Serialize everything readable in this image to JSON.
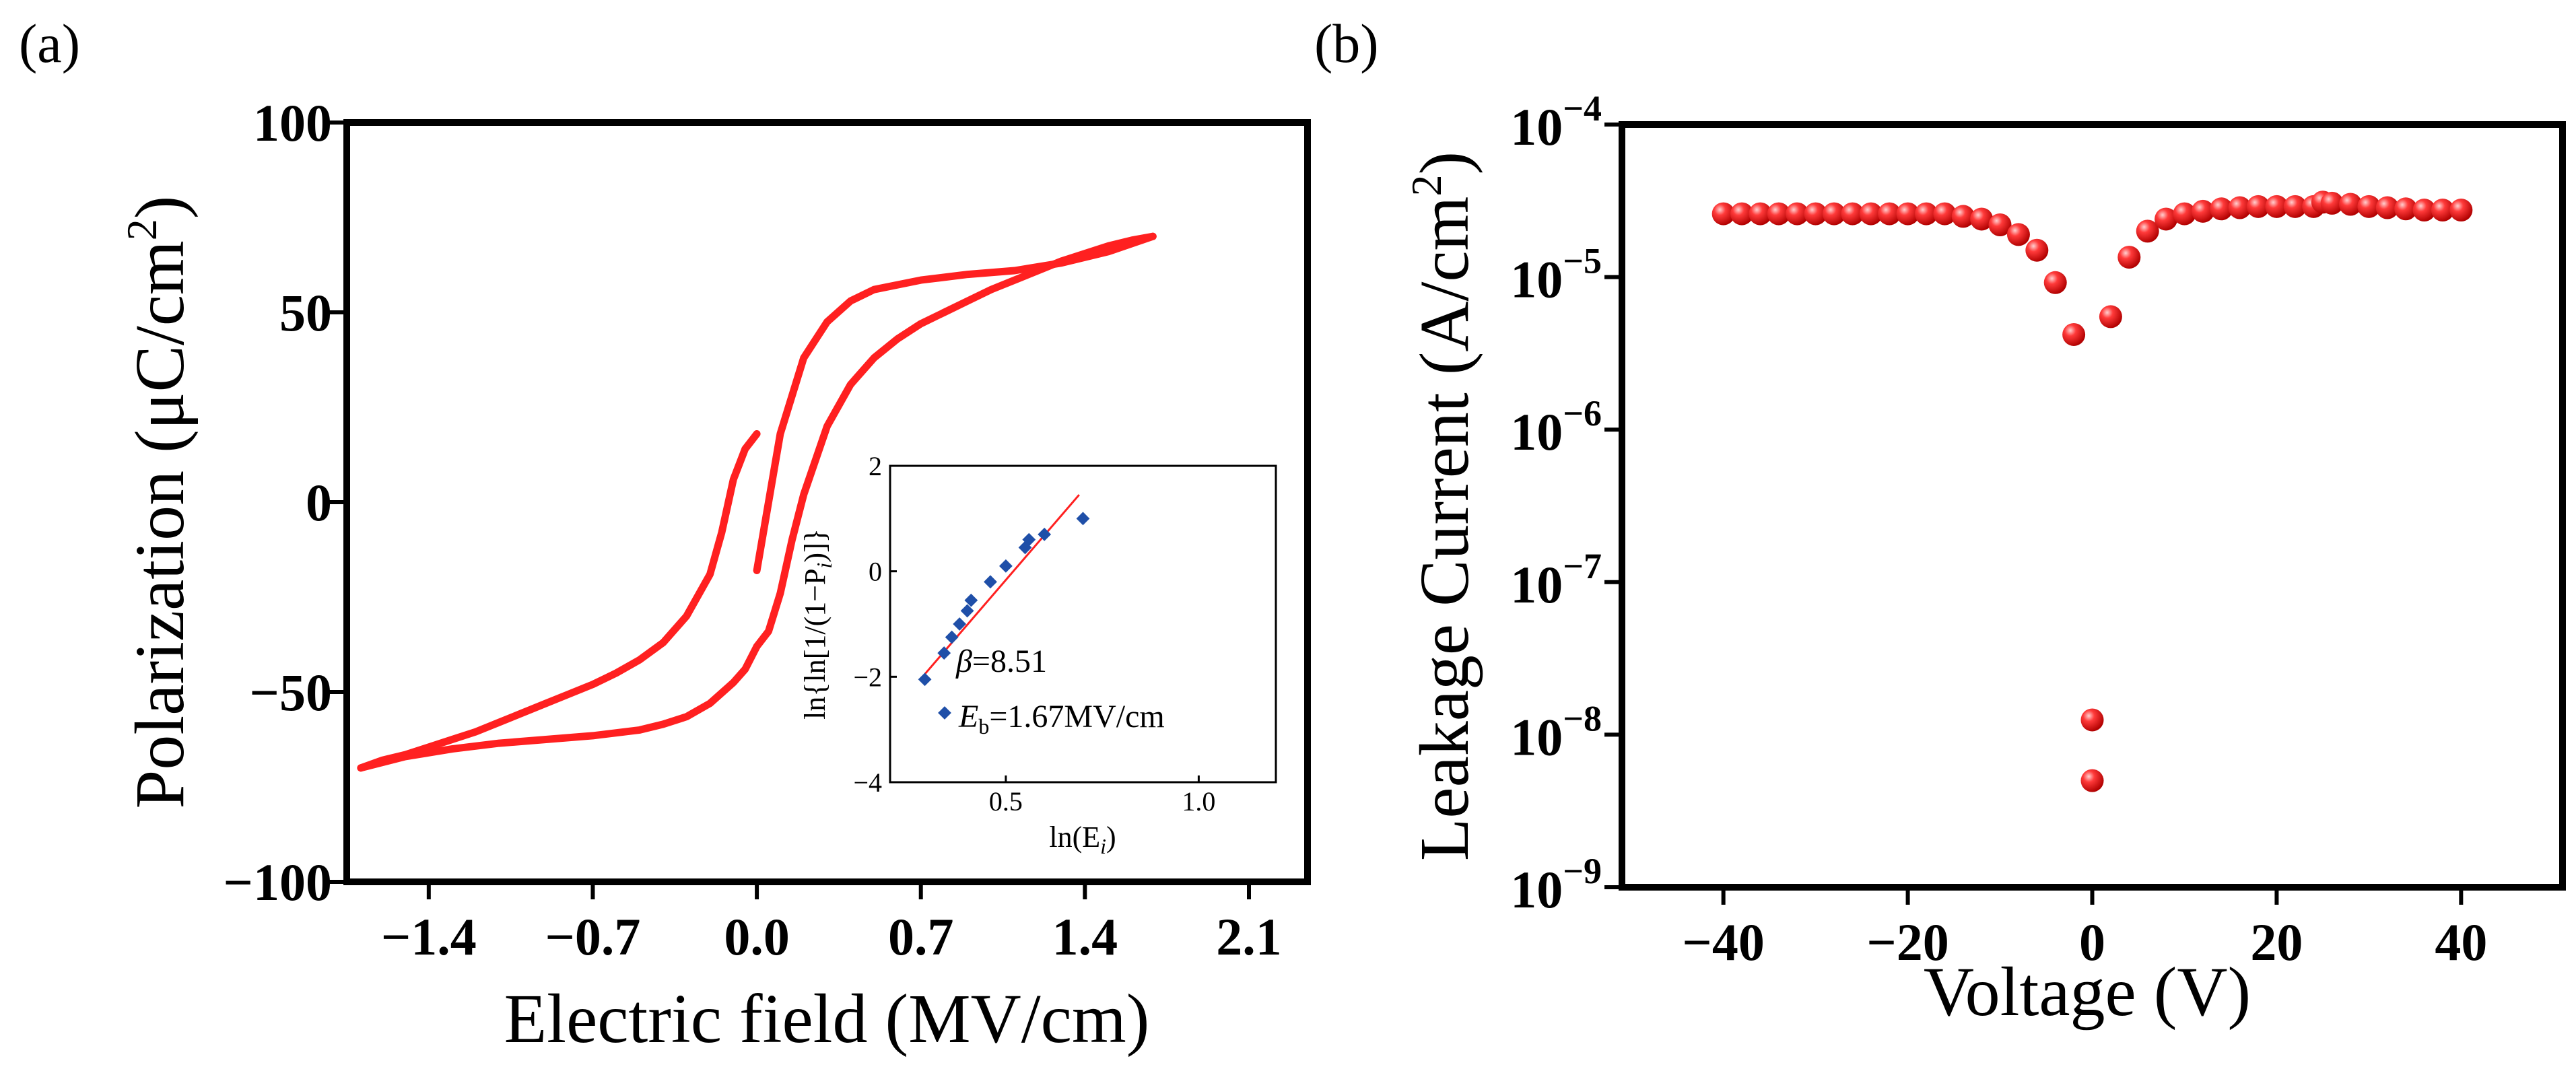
{
  "chart_data": [
    {
      "panel_label": "(a)",
      "type": "line",
      "title": "",
      "xlabel": "Electric field (MV/cm)",
      "ylabel": "Polarization (μC/cm²)",
      "ylabel_parts": {
        "main": "Polarization (μC/cm",
        "sup": "2",
        "end": ")"
      },
      "xlim": [
        -1.75,
        2.35
      ],
      "ylim": [
        -100,
        100
      ],
      "xticks": [
        -1.4,
        -0.7,
        0.0,
        0.7,
        1.4,
        2.1
      ],
      "xtick_labels": [
        "−1.4",
        "−0.7",
        "0.0",
        "0.7",
        "1.4",
        "2.1"
      ],
      "yticks": [
        -100,
        -50,
        0,
        50,
        100
      ],
      "ytick_labels": [
        "−100",
        "−50",
        "0",
        "50",
        "100"
      ],
      "color": "#ff2020",
      "series": [
        {
          "name": "branch-forward",
          "x": [
            0.0,
            0.05,
            0.1,
            0.15,
            0.2,
            0.3,
            0.4,
            0.5,
            0.6,
            0.7,
            0.8,
            0.9,
            1.0,
            1.1,
            1.2,
            1.3,
            1.4,
            1.5,
            1.6,
            1.69
          ],
          "y": [
            -38,
            -34,
            -24,
            -10,
            2,
            20,
            31,
            38,
            43,
            47,
            50,
            53,
            56,
            58.5,
            61,
            63.5,
            65.5,
            67.5,
            69,
            70
          ]
        },
        {
          "name": "branch-return",
          "x": [
            1.69,
            1.5,
            1.3,
            1.1,
            0.9,
            0.7,
            0.5,
            0.4,
            0.3,
            0.2,
            0.1,
            0.05,
            0.0
          ],
          "y": [
            70,
            66,
            63,
            61,
            60,
            58.5,
            56,
            53,
            47.5,
            38,
            18,
            0,
            -18
          ]
        },
        {
          "name": "branch-reverse",
          "x": [
            0.0,
            -0.05,
            -0.1,
            -0.15,
            -0.2,
            -0.3,
            -0.4,
            -0.5,
            -0.6,
            -0.7,
            -0.8,
            -0.9,
            -1.0,
            -1.1,
            -1.2,
            -1.3,
            -1.4,
            -1.5,
            -1.6,
            -1.69
          ],
          "y": [
            18,
            14,
            6,
            -8,
            -19,
            -30,
            -37,
            -41.5,
            -45,
            -48,
            -50.5,
            -53,
            -55.5,
            -58,
            -60.5,
            -62.5,
            -64.5,
            -66.5,
            -68,
            -70
          ]
        },
        {
          "name": "branch-return-negative",
          "x": [
            -1.69,
            -1.5,
            -1.3,
            -1.1,
            -0.9,
            -0.7,
            -0.5,
            -0.4,
            -0.3,
            -0.2,
            -0.1,
            -0.05,
            0.0
          ],
          "y": [
            -70,
            -67,
            -65,
            -63.5,
            -62.5,
            -61.5,
            -60,
            -58.5,
            -56.5,
            -53,
            -47.5,
            -44,
            -38
          ]
        }
      ],
      "inset": {
        "type": "scatter",
        "xlabel": "ln(E)",
        "xlabel_parts": {
          "main": "ln(E",
          "sub": "i",
          "end": ")"
        },
        "ylabel": "ln{ln[1/(1−P)]}",
        "ylabel_parts": {
          "main": "ln{ln[1/(1−P",
          "sub": "i",
          "end": ")]}"
        },
        "xlim": [
          0.2,
          1.2
        ],
        "ylim": [
          -4,
          2
        ],
        "xticks": [
          0.5,
          1.0
        ],
        "xtick_labels": [
          "0.5",
          "1.0"
        ],
        "yticks": [
          -4,
          -2,
          0,
          2
        ],
        "ytick_labels": [
          "−4",
          "−2",
          "0",
          "2"
        ],
        "points_x": [
          0.29,
          0.34,
          0.36,
          0.38,
          0.4,
          0.41,
          0.46,
          0.5,
          0.55,
          0.56,
          0.6,
          0.7
        ],
        "points_y": [
          -2.05,
          -1.55,
          -1.25,
          -1.0,
          -0.75,
          -0.55,
          -0.2,
          0.1,
          0.45,
          0.6,
          0.7,
          1.0
        ],
        "fit_x": [
          0.29,
          0.69
        ],
        "fit_y": [
          -1.95,
          1.45
        ],
        "point_color": "#1f4fa8",
        "fit_color": "#ff2020",
        "beta_symbol": "β",
        "beta_value": "=8.51",
        "eb_symbol": "E",
        "eb_sub": "b",
        "eb_value": "=1.67MV/cm"
      }
    },
    {
      "panel_label": "(b)",
      "type": "scatter",
      "title": "",
      "xlabel": "Voltage (V)",
      "ylabel": "Leakage Current (A/cm²)",
      "ylabel_parts": {
        "main": "Leakage Current (A/cm",
        "sup": "2",
        "end": ")"
      },
      "xlim": [
        -51,
        51
      ],
      "ylim_log10": [
        -9,
        -4
      ],
      "yscale": "log",
      "xticks": [
        -40,
        -20,
        0,
        20,
        40
      ],
      "xtick_labels": [
        "−40",
        "−20",
        "0",
        "20",
        "40"
      ],
      "ytick_exponents": [
        -9,
        -8,
        -7,
        -6,
        -5,
        -4
      ],
      "ytick_base": "10",
      "ytick_exp_labels": [
        "−9",
        "−8",
        "−7",
        "−6",
        "−5",
        "−4"
      ],
      "color": "#ff2020",
      "x": [
        -40,
        -38,
        -36,
        -34,
        -32,
        -30,
        -28,
        -26,
        -24,
        -22,
        -20,
        -18,
        -16,
        -14,
        -12,
        -10,
        -8,
        -6,
        -4,
        -2,
        0,
        0,
        2,
        4,
        6,
        8,
        10,
        12,
        14,
        16,
        18,
        20,
        22,
        24,
        25,
        26,
        28,
        30,
        32,
        34,
        36,
        38,
        40
      ],
      "y": [
        2.6e-05,
        2.6e-05,
        2.6e-05,
        2.6e-05,
        2.6e-05,
        2.6e-05,
        2.6e-05,
        2.6e-05,
        2.6e-05,
        2.6e-05,
        2.6e-05,
        2.6e-05,
        2.6e-05,
        2.5e-05,
        2.4e-05,
        2.2e-05,
        1.9e-05,
        1.5e-05,
        9.2e-06,
        4.2e-06,
        1.25e-08,
        5e-09,
        5.5e-06,
        1.35e-05,
        2e-05,
        2.4e-05,
        2.6e-05,
        2.7e-05,
        2.8e-05,
        2.85e-05,
        2.9e-05,
        2.9e-05,
        2.9e-05,
        2.9e-05,
        3.1e-05,
        3.05e-05,
        3e-05,
        2.9e-05,
        2.85e-05,
        2.8e-05,
        2.75e-05,
        2.75e-05,
        2.75e-05
      ]
    }
  ]
}
